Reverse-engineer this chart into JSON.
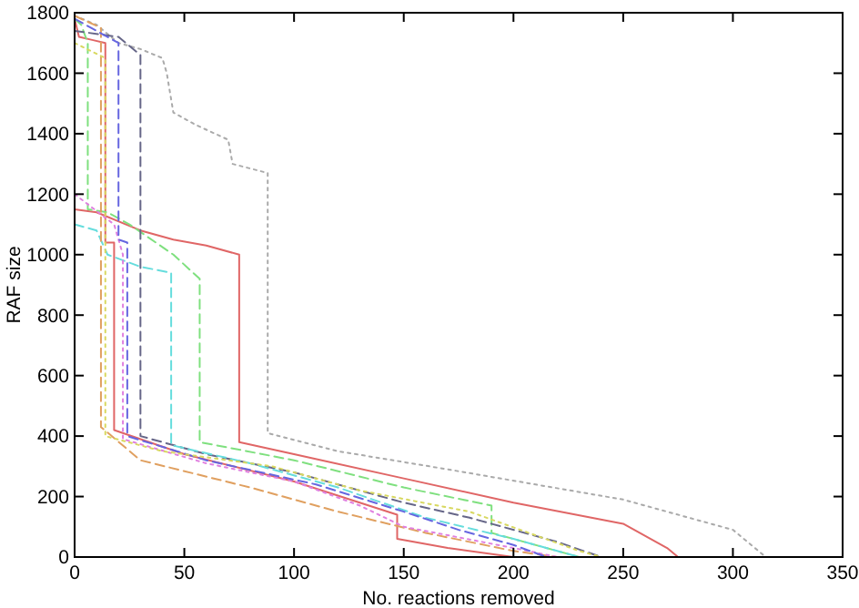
{
  "chart_data": {
    "type": "line",
    "xlabel": "No. reactions removed",
    "ylabel": "RAF size",
    "xlim": [
      0,
      350
    ],
    "ylim": [
      0,
      1800
    ],
    "xticks": [
      0,
      50,
      100,
      150,
      200,
      250,
      300,
      350
    ],
    "yticks": [
      0,
      200,
      400,
      600,
      800,
      1000,
      1200,
      1400,
      1600,
      1800
    ],
    "grid": false,
    "series": [
      {
        "color": "#e06666",
        "line_style": "solid",
        "x": [
          0,
          2,
          8,
          14,
          14,
          18,
          18,
          50,
          100,
          147,
          147,
          170,
          200
        ],
        "values": [
          1780,
          1720,
          1710,
          1700,
          1040,
          1040,
          420,
          340,
          250,
          140,
          60,
          30,
          0
        ]
      },
      {
        "color": "#e06666",
        "line_style": "solid",
        "x": [
          0,
          10,
          30,
          45,
          60,
          75,
          75,
          100,
          150,
          200,
          250,
          270,
          275
        ],
        "values": [
          1150,
          1140,
          1080,
          1050,
          1030,
          1000,
          380,
          340,
          260,
          180,
          110,
          30,
          0
        ]
      },
      {
        "color": "#7fe07f",
        "line_style": "dashed",
        "x": [
          0,
          3,
          6,
          6,
          15,
          25,
          45,
          57,
          57,
          100,
          150,
          190,
          190,
          230
        ],
        "values": [
          1780,
          1760,
          1700,
          1150,
          1140,
          1100,
          1000,
          920,
          380,
          320,
          230,
          170,
          80,
          0
        ]
      },
      {
        "color": "#aaaaaa",
        "line_style": "dotted",
        "x": [
          0,
          10,
          20,
          30,
          40,
          42,
          45,
          55,
          70,
          72,
          88,
          88,
          120,
          170,
          250,
          300,
          315
        ],
        "values": [
          1790,
          1760,
          1700,
          1680,
          1650,
          1600,
          1470,
          1430,
          1380,
          1300,
          1270,
          410,
          350,
          290,
          190,
          90,
          0
        ]
      },
      {
        "color": "#666688",
        "line_style": "dashed",
        "x": [
          0,
          20,
          30,
          30,
          60,
          100,
          150,
          180,
          220,
          240
        ],
        "values": [
          1740,
          1720,
          1660,
          400,
          340,
          280,
          180,
          130,
          50,
          0
        ]
      },
      {
        "color": "#66dddd",
        "line_style": "dashed",
        "x": [
          0,
          10,
          15,
          30,
          44,
          44,
          80,
          120,
          160,
          200,
          230
        ],
        "values": [
          1100,
          1080,
          1000,
          960,
          940,
          370,
          310,
          230,
          130,
          60,
          0
        ]
      },
      {
        "color": "#e0a060",
        "line_style": "dashed",
        "x": [
          0,
          12,
          12,
          30,
          80,
          120,
          160,
          200,
          220
        ],
        "values": [
          1790,
          1750,
          430,
          320,
          230,
          150,
          80,
          20,
          0
        ]
      },
      {
        "color": "#e080e0",
        "line_style": "dotted",
        "x": [
          0,
          18,
          22,
          22,
          60,
          100,
          130,
          150,
          200,
          220
        ],
        "values": [
          1200,
          1100,
          1000,
          390,
          310,
          250,
          170,
          100,
          30,
          0
        ]
      },
      {
        "color": "#6666e0",
        "line_style": "dashed",
        "x": [
          0,
          5,
          20,
          20,
          24,
          24,
          60,
          110,
          150,
          175,
          200,
          215
        ],
        "values": [
          1780,
          1760,
          1700,
          1050,
          1040,
          400,
          320,
          240,
          150,
          90,
          40,
          0
        ]
      },
      {
        "color": "#d8d860",
        "line_style": "dotted",
        "x": [
          0,
          14,
          14,
          40,
          90,
          130,
          180,
          230,
          240
        ],
        "values": [
          1700,
          1650,
          400,
          350,
          300,
          220,
          150,
          20,
          0
        ]
      }
    ]
  }
}
